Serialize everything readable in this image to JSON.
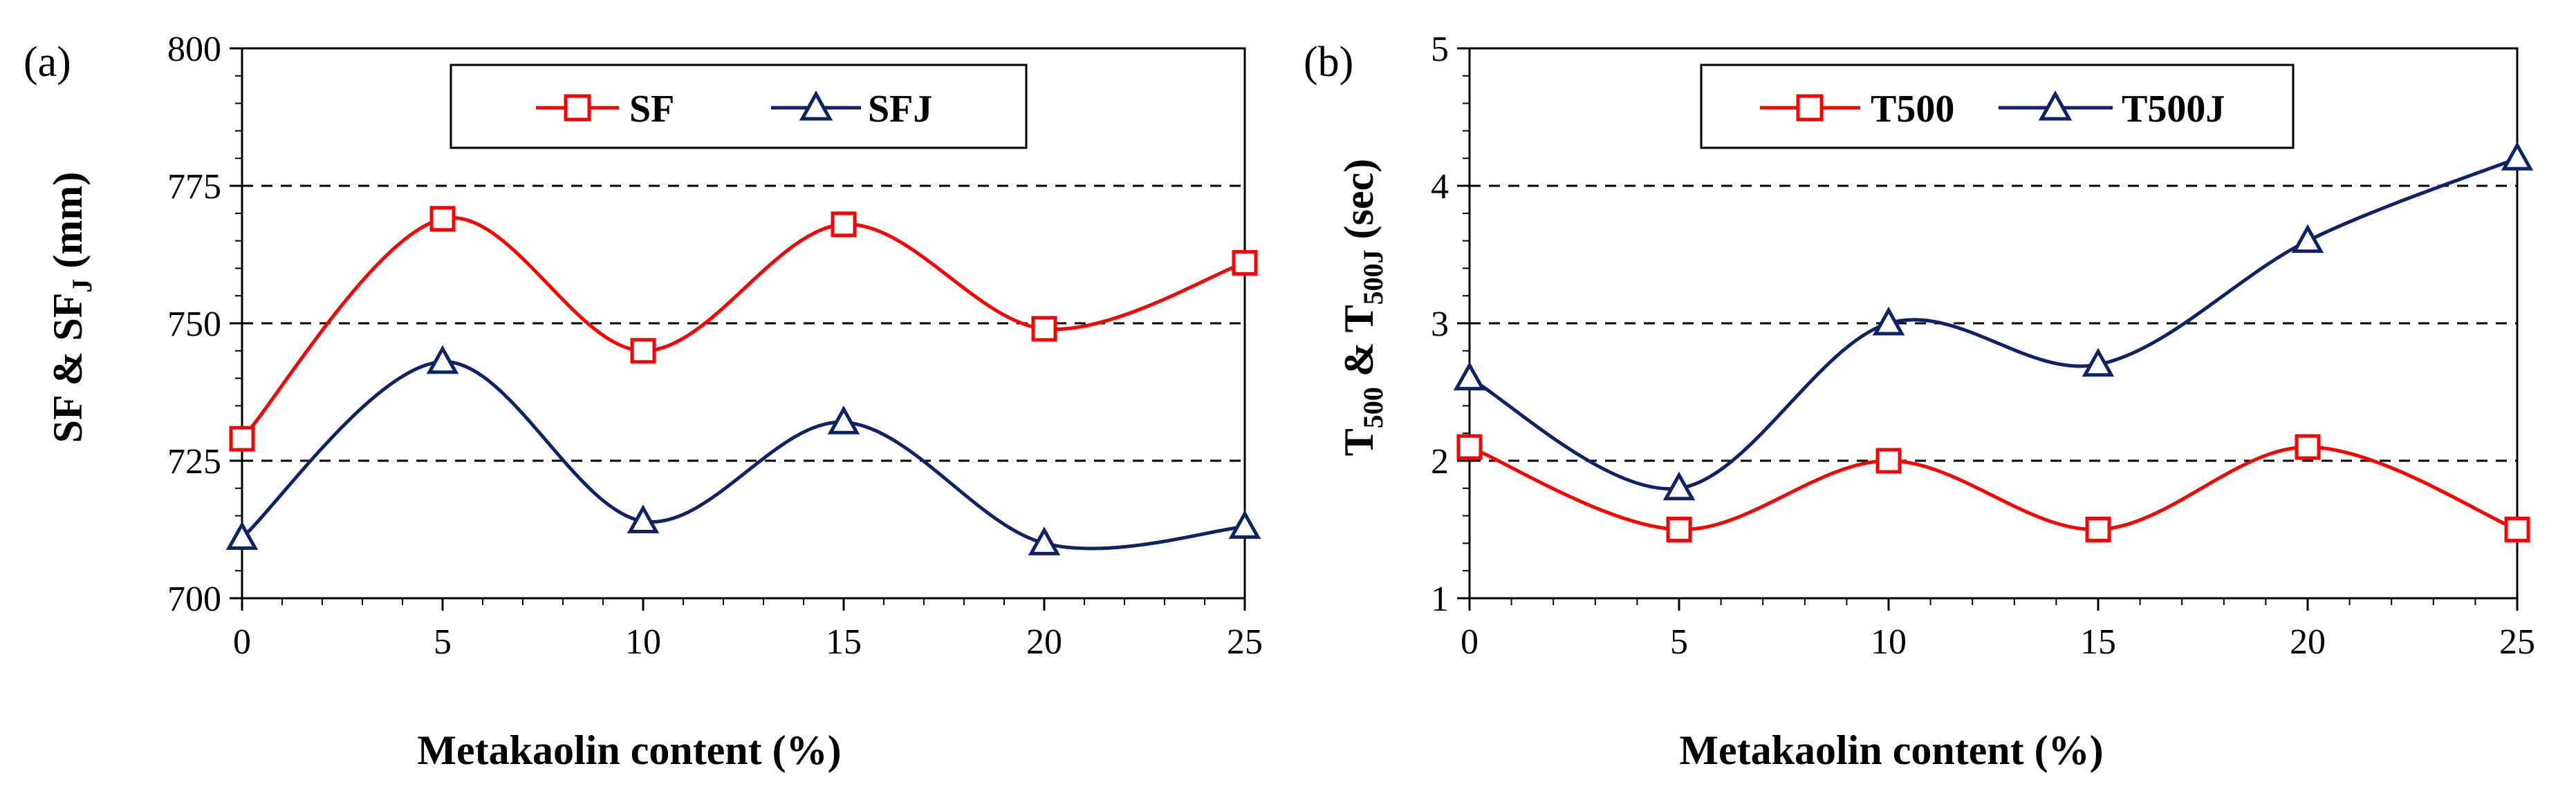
{
  "figure": {
    "background": "#ffffff"
  },
  "colors": {
    "red": "#ff0000",
    "navy": "#0d2366",
    "grid": "#000000",
    "axis": "#000000"
  },
  "chart_data": [
    {
      "panel": "(a)",
      "type": "line",
      "smooth": true,
      "x": [
        0,
        5,
        10,
        15,
        20,
        25
      ],
      "x_ticks": [
        "0",
        "5",
        "10",
        "15",
        "20",
        "25"
      ],
      "xlim": [
        0,
        25
      ],
      "ylim": [
        700,
        800
      ],
      "y_ticks": [
        "700",
        "725",
        "750",
        "775",
        "800"
      ],
      "y_tick_values": [
        700,
        725,
        750,
        775,
        800
      ],
      "grid_lines": [
        725,
        750,
        775
      ],
      "xlabel": "Metakaolin content (%)",
      "ylabel": {
        "parts": [
          "SF & SF",
          "J",
          " (mm)"
        ]
      },
      "legend_position": "top-center",
      "series": [
        {
          "name": "SF",
          "legend_label": "SF",
          "marker": "square",
          "color": "#ff0000",
          "values": [
            729,
            769,
            745,
            768,
            749,
            761
          ]
        },
        {
          "name": "SFJ",
          "legend_label": "SFJ",
          "marker": "triangle",
          "color": "#0d2366",
          "values": [
            711,
            743,
            714,
            732,
            710,
            713
          ]
        }
      ]
    },
    {
      "panel": "(b)",
      "type": "line",
      "smooth": true,
      "x": [
        0,
        5,
        10,
        15,
        20,
        25
      ],
      "x_ticks": [
        "0",
        "5",
        "10",
        "15",
        "20",
        "25"
      ],
      "xlim": [
        0,
        25
      ],
      "ylim": [
        1,
        5
      ],
      "y_ticks": [
        "1",
        "2",
        "3",
        "4",
        "5"
      ],
      "y_tick_values": [
        1,
        2,
        3,
        4,
        5
      ],
      "grid_lines": [
        2,
        3,
        4
      ],
      "xlabel": "Metakaolin content (%)",
      "ylabel": {
        "parts": [
          "T",
          "500",
          " & T",
          "500J",
          " (sec)"
        ]
      },
      "legend_position": "top-center",
      "series": [
        {
          "name": "T500",
          "legend_label": "T500",
          "marker": "square",
          "color": "#ff0000",
          "values": [
            2.1,
            1.5,
            2.0,
            1.5,
            2.1,
            1.5
          ]
        },
        {
          "name": "T500J",
          "legend_label": "T500J",
          "marker": "triangle",
          "color": "#0d2366",
          "values": [
            2.6,
            1.8,
            3.0,
            2.7,
            3.6,
            4.2
          ]
        }
      ]
    }
  ]
}
